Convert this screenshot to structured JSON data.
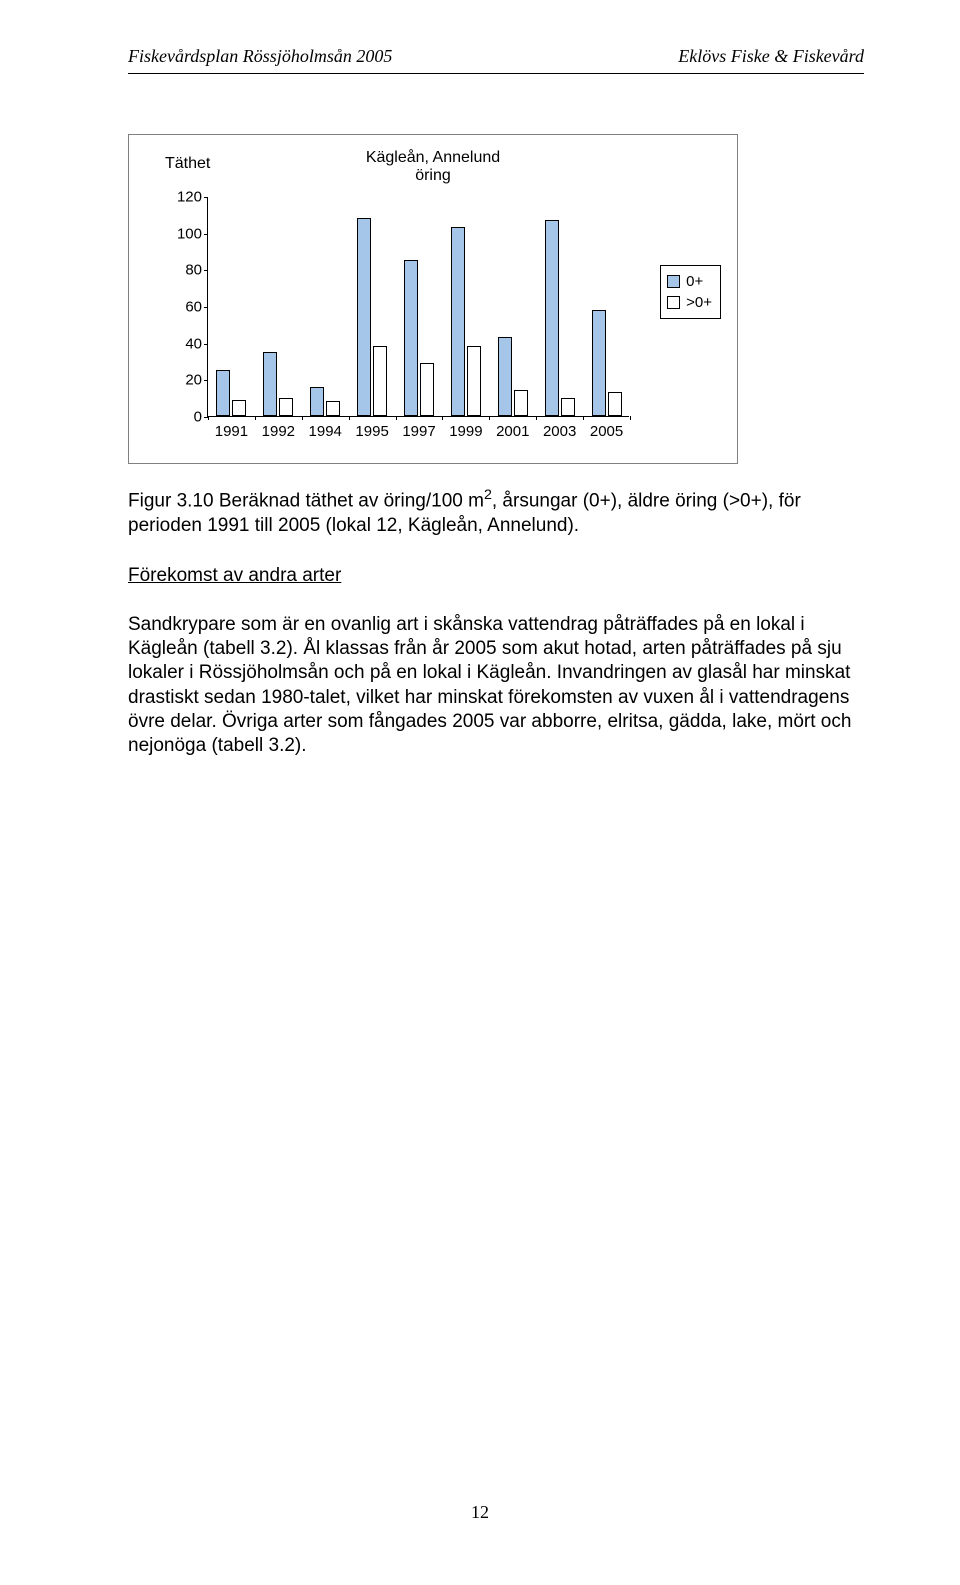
{
  "header": {
    "left": "Fiskevårdsplan Rössjöholmsån 2005",
    "right": "Eklövs Fiske & Fiskevård"
  },
  "chart": {
    "type": "bar",
    "title_line1": "Kägleån, Annelund",
    "title_line2": "öring",
    "y_axis_title": "Täthet",
    "ylim": [
      0,
      120
    ],
    "ytick_step": 20,
    "y_ticks": [
      0,
      20,
      40,
      60,
      80,
      100,
      120
    ],
    "categories": [
      "1991",
      "1992",
      "1994",
      "1995",
      "1997",
      "1999",
      "2001",
      "2003",
      "2005"
    ],
    "series": [
      {
        "name": "0+",
        "color": "#a5c5e9",
        "values": [
          25,
          35,
          16,
          108,
          85,
          103,
          43,
          107,
          58
        ]
      },
      {
        "name": ">0+",
        "color": "#ffffff",
        "values": [
          9,
          10,
          8,
          38,
          29,
          38,
          14,
          10,
          13
        ]
      }
    ],
    "background_color": "#ffffff",
    "border_color": "#808080",
    "axis_color": "#000000",
    "bar_border_color": "#000000",
    "label_fontsize": 15,
    "title_fontsize": 16
  },
  "caption": {
    "prefix": "Figur 3.10 Beräknad täthet av öring/100 m",
    "suffix": ", årsungar (0+), äldre öring (>0+), för perioden 1991 till 2005 (lokal 12, Kägleån, Annelund)."
  },
  "section_title": "Förekomst av andra arter",
  "body": "Sandkrypare som är en ovanlig art i skånska vattendrag påträffades på en lokal i Kägleån (tabell 3.2). Ål klassas från år 2005 som akut hotad, arten påträffades på sju lokaler i Rössjöholmsån och på en lokal i Kägleån. Invandringen av glasål har minskat drastiskt sedan 1980-talet, vilket har minskat förekomsten av vuxen ål i vattendragens övre delar. Övriga arter som fångades 2005 var abborre, elritsa, gädda, lake, mört och nejonöga (tabell 3.2).",
  "page_number": "12"
}
